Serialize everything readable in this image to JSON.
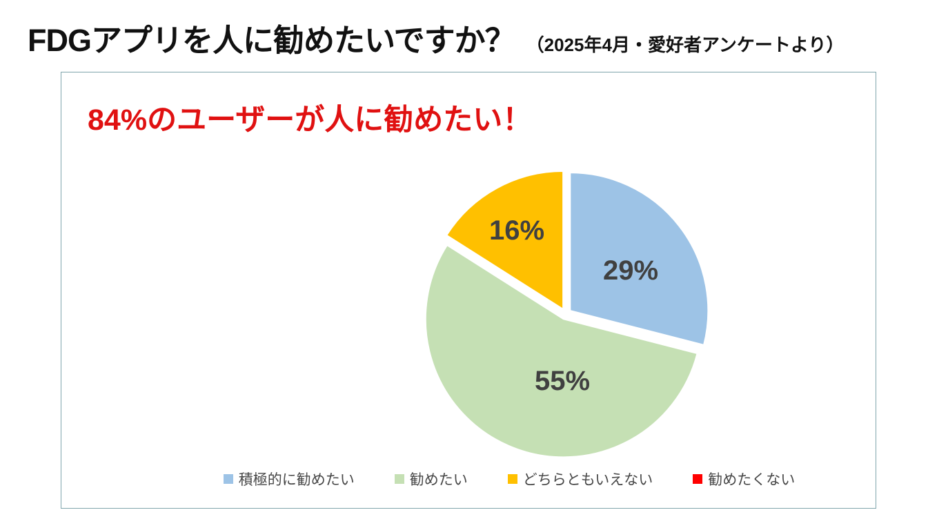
{
  "page": {
    "title": "FDGアプリを人に勧めたいですか？",
    "title_note": "（2025年4月・愛好者アンケートより）",
    "background": "#ffffff"
  },
  "panel": {
    "headline": "84%のユーザーが人に勧めたい！",
    "headline_color": "#e01111",
    "border_color": "#7fa4ac"
  },
  "chart_data": {
    "type": "pie",
    "title": "",
    "start_angle_deg": 0,
    "direction": "clockwise",
    "exploded": true,
    "legend_position": "bottom",
    "data_label_color": "#404040",
    "slices": [
      {
        "label": "積極的に勧めたい",
        "value_pct": 29,
        "data_label": "29%",
        "color": "#9dc3e6"
      },
      {
        "label": "勧めたい",
        "value_pct": 55,
        "data_label": "55%",
        "color": "#c5e0b4"
      },
      {
        "label": "どちらともいえない",
        "value_pct": 16,
        "data_label": "16%",
        "color": "#ffc000"
      },
      {
        "label": "勧めたくない",
        "value_pct": 0,
        "data_label": "",
        "color": "#ff0000"
      }
    ]
  }
}
